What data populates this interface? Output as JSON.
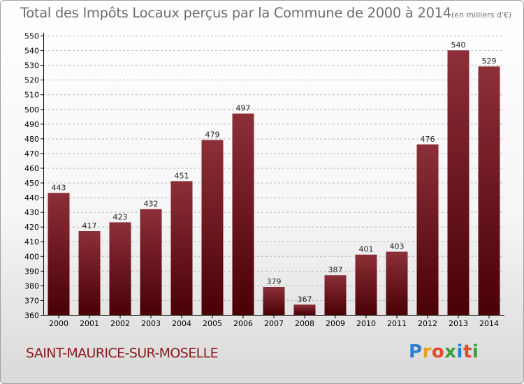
{
  "title": "Total des Impôts Locaux perçus par la Commune de 2000 à 2014",
  "unit_label": "(en milliers d'€)",
  "commune": "SAINT-MAURICE-SUR-MOSELLE",
  "brand": {
    "text": "Proxiti",
    "letter_colors": [
      "#2a7fd4",
      "#e8a020",
      "#e04a2a",
      "#3aa03a",
      "#2a7fd4",
      "#e04a2a",
      "#3aa03a"
    ]
  },
  "colors": {
    "bar_top": "#8c2f38",
    "bar_bottom": "#4a0006",
    "axis": "#000000",
    "grid": "#b8b8b8",
    "tick_text": "#000000",
    "title_text": "#6e6e6e",
    "commune_text": "#8b1a1a"
  },
  "chart_data": {
    "type": "bar",
    "categories": [
      "2000",
      "2001",
      "2002",
      "2003",
      "2004",
      "2005",
      "2006",
      "2007",
      "2008",
      "2009",
      "2010",
      "2011",
      "2012",
      "2013",
      "2014"
    ],
    "values": [
      443,
      417,
      423,
      432,
      451,
      479,
      497,
      379,
      367,
      387,
      401,
      403,
      476,
      540,
      529
    ],
    "ylim": [
      360,
      550
    ],
    "ytick_step": 10,
    "grid": true
  }
}
